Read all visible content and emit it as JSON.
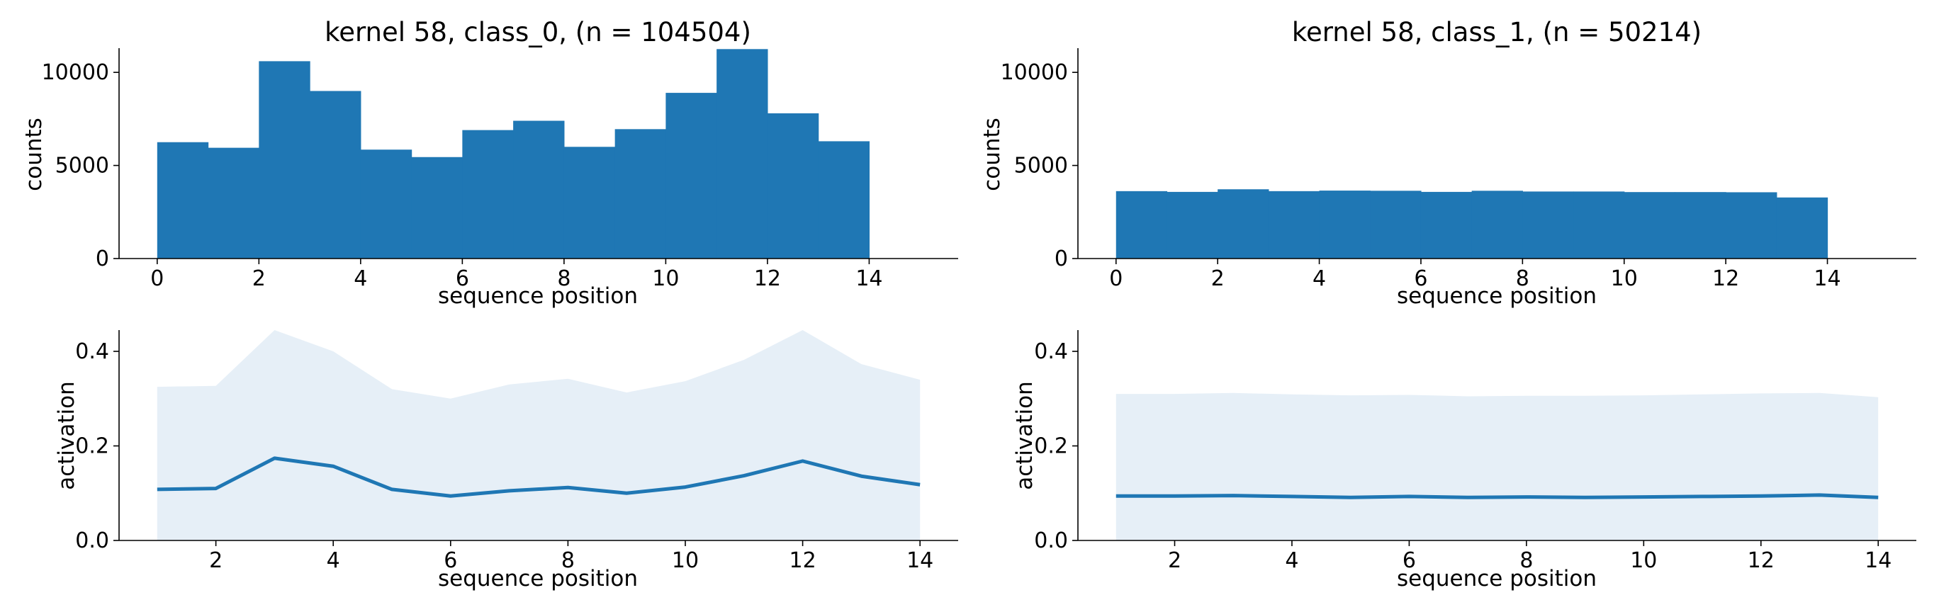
{
  "chart_data": [
    {
      "type": "bar",
      "title": "kernel 58, class_0, (n = 104504)",
      "xlabel": "sequence position",
      "ylabel": "counts",
      "xlim": [
        -0.75,
        15.75
      ],
      "ylim": [
        0,
        11300
      ],
      "xticks": [
        "0",
        "2",
        "4",
        "6",
        "8",
        "10",
        "12",
        "14"
      ],
      "yticks": [
        "0",
        "5000",
        "10000"
      ],
      "bin_edges": [
        0,
        1,
        2,
        3,
        4,
        5,
        6,
        7,
        8,
        9,
        10,
        11,
        12,
        13,
        14
      ],
      "values": [
        6250,
        5950,
        10600,
        9000,
        5850,
        5450,
        6900,
        7400,
        6000,
        6950,
        8900,
        11250,
        7800,
        6300
      ],
      "color": "#1f77b4",
      "grid": false
    },
    {
      "type": "bar",
      "title": "kernel 58, class_1, (n = 50214)",
      "xlabel": "sequence position",
      "ylabel": "counts",
      "xlim": [
        -0.75,
        15.75
      ],
      "ylim": [
        0,
        11300
      ],
      "xticks": [
        "0",
        "2",
        "4",
        "6",
        "8",
        "10",
        "12",
        "14"
      ],
      "yticks": [
        "0",
        "5000",
        "10000"
      ],
      "bin_edges": [
        0,
        1,
        2,
        3,
        4,
        5,
        6,
        7,
        8,
        9,
        10,
        11,
        12,
        13,
        14
      ],
      "values": [
        3620,
        3580,
        3720,
        3620,
        3650,
        3640,
        3580,
        3640,
        3600,
        3600,
        3570,
        3570,
        3560,
        3280
      ],
      "color": "#1f77b4",
      "grid": false
    },
    {
      "type": "area",
      "title": "",
      "xlabel": "sequence position",
      "ylabel": "activation",
      "xlim": [
        0.35,
        14.65
      ],
      "ylim": [
        0,
        0.445
      ],
      "xticks": [
        "2",
        "4",
        "6",
        "8",
        "10",
        "12",
        "14"
      ],
      "yticks": [
        "0.0",
        "0.2",
        "0.4"
      ],
      "x": [
        1,
        2,
        3,
        4,
        5,
        6,
        7,
        8,
        9,
        10,
        11,
        12,
        13,
        14
      ],
      "mean": [
        0.108,
        0.11,
        0.174,
        0.157,
        0.108,
        0.094,
        0.105,
        0.112,
        0.1,
        0.113,
        0.137,
        0.168,
        0.136,
        0.118
      ],
      "upper": [
        0.325,
        0.327,
        0.445,
        0.4,
        0.32,
        0.3,
        0.33,
        0.342,
        0.313,
        0.337,
        0.382,
        0.445,
        0.373,
        0.34
      ],
      "lower": [
        0,
        0,
        0,
        0,
        0,
        0,
        0,
        0,
        0,
        0,
        0,
        0,
        0,
        0
      ],
      "line_color": "#1f77b4",
      "band_color": "#e6eff7",
      "grid": false
    },
    {
      "type": "area",
      "title": "",
      "xlabel": "sequence position",
      "ylabel": "activation",
      "xlim": [
        0.35,
        14.65
      ],
      "ylim": [
        0,
        0.445
      ],
      "xticks": [
        "2",
        "4",
        "6",
        "8",
        "10",
        "12",
        "14"
      ],
      "yticks": [
        "0.0",
        "0.2",
        "0.4"
      ],
      "x": [
        1,
        2,
        3,
        4,
        5,
        6,
        7,
        8,
        9,
        10,
        11,
        12,
        13,
        14
      ],
      "mean": [
        0.094,
        0.094,
        0.095,
        0.093,
        0.091,
        0.093,
        0.091,
        0.092,
        0.091,
        0.092,
        0.093,
        0.094,
        0.096,
        0.091
      ],
      "upper": [
        0.31,
        0.31,
        0.312,
        0.309,
        0.307,
        0.308,
        0.305,
        0.306,
        0.306,
        0.307,
        0.309,
        0.311,
        0.312,
        0.303
      ],
      "lower": [
        0,
        0,
        0,
        0,
        0,
        0,
        0,
        0,
        0,
        0,
        0,
        0,
        0,
        0
      ],
      "line_color": "#1f77b4",
      "band_color": "#e6eff7",
      "grid": false
    }
  ]
}
